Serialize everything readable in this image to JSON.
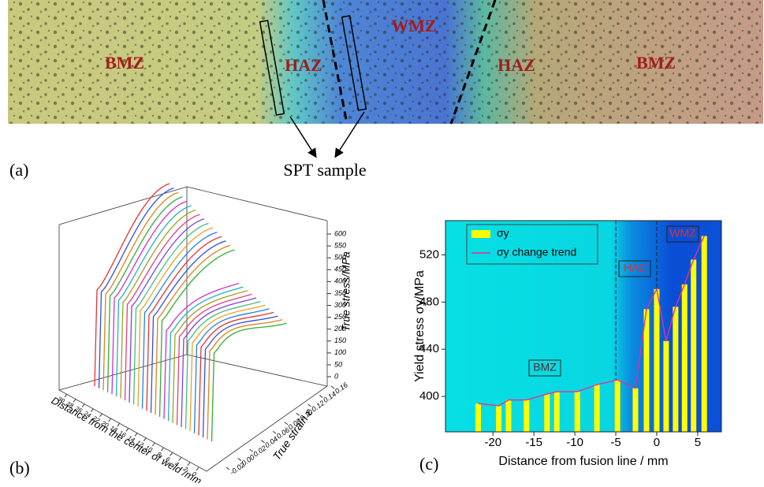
{
  "panel_a": {
    "label": "(a)",
    "zones": [
      "BMZ",
      "HAZ",
      "WMZ",
      "HAZ",
      "BMZ"
    ],
    "caption": "SPT sample"
  },
  "chart_data": [
    {
      "type": "line3d",
      "panel_label": "(b)",
      "x_label": "Distance from the center of weld /mm",
      "y_label": "True strain ε",
      "z_label": "True stress/MPa",
      "xlim": [
        0,
        30
      ],
      "xticks": [
        0,
        2,
        4,
        6,
        8,
        10,
        12,
        14,
        16,
        18,
        20,
        22,
        24,
        26,
        28,
        30
      ],
      "ylim": [
        -0.02,
        0.16
      ],
      "yticks": [
        -0.02,
        {
          "value": 0,
          "label": "0.00"
        },
        0.02,
        0.04,
        0.06,
        0.08,
        {
          "value": 0.1,
          "label": "0.10"
        },
        0.12,
        0.14,
        0.16
      ],
      "zlim": [
        0,
        600
      ],
      "zticks": [
        0,
        50,
        100,
        150,
        200,
        250,
        300,
        350,
        400,
        450,
        500,
        550,
        600
      ]
    },
    {
      "type": "bar",
      "panel_label": "(c)",
      "x_label": "Distance from fusion line / mm",
      "y_label": "Yield stress σy/MPa",
      "x": [
        -21.8,
        -19.3,
        -18.1,
        -15.9,
        -13.4,
        -12.2,
        -9.7,
        -7.3,
        -4.8,
        -2.6,
        -1.25,
        0,
        1.15,
        2.3,
        3.4,
        4.5,
        5.8
      ],
      "series": [
        {
          "name": "σy",
          "color": "#ffff00",
          "values": [
            394,
            392,
            397,
            397,
            402,
            404,
            404,
            410,
            414,
            407,
            474,
            491,
            447,
            476,
            495,
            516,
            536
          ]
        }
      ],
      "trend": {
        "name": "σy change trend",
        "color": "#e0309a"
      },
      "xlim": [
        -25.8,
        7.9
      ],
      "xticks": [
        -20,
        -15,
        -10,
        -5,
        0,
        5
      ],
      "ylim": [
        370,
        549
      ],
      "yticks": [
        400,
        440,
        480,
        520
      ],
      "vlines": [
        -5,
        0
      ],
      "annotations": [
        "BMZ",
        "HAZ",
        "WMZ"
      ]
    }
  ]
}
